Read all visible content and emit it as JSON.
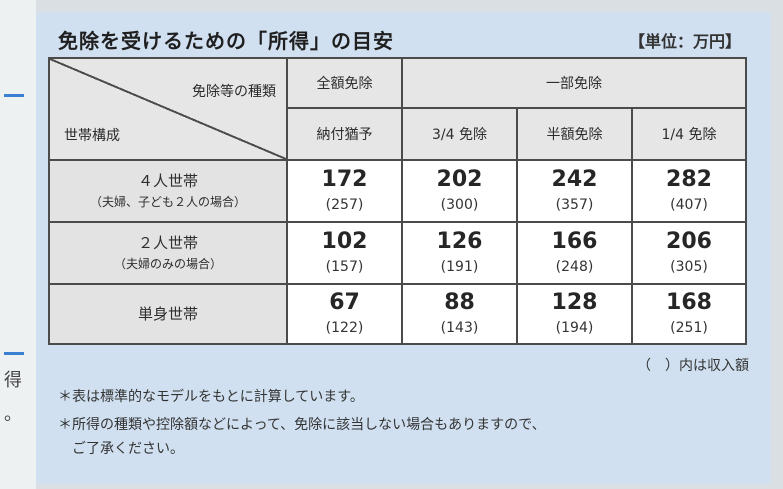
{
  "edge": {
    "char": "得",
    "char2": "。"
  },
  "title": "免除を受けるための「所得」の目安",
  "unit": "【単位：万円】",
  "table": {
    "diag_top": "免除等の種類",
    "diag_bottom": "世帯構成",
    "group_full": "全額免除",
    "group_partial": "一部免除",
    "col_full": "納付猶予",
    "cols": [
      "3/4 免除",
      "半額免除",
      "1/4 免除"
    ],
    "rows": [
      {
        "label": "４人世帯",
        "sublabel": "（夫婦、子ども２人の場合）",
        "values": [
          "172",
          "202",
          "242",
          "282"
        ],
        "incomes": [
          "(257)",
          "(300)",
          "(357)",
          "(407)"
        ]
      },
      {
        "label": "２人世帯",
        "sublabel": "（夫婦のみの場合）",
        "values": [
          "102",
          "126",
          "166",
          "206"
        ],
        "incomes": [
          "(157)",
          "(191)",
          "(248)",
          "(305)"
        ]
      },
      {
        "label": "単身世帯",
        "sublabel": "",
        "values": [
          "67",
          "88",
          "128",
          "168"
        ],
        "incomes": [
          "(122)",
          "(143)",
          "(194)",
          "(251)"
        ]
      }
    ]
  },
  "income_note": "（　）内は収入額",
  "notes": [
    "＊表は標準的なモデルをもとに計算しています。",
    "＊所得の種類や控除額などによって、免除に該当しない場合もありますので、",
    "　ご了承ください。"
  ]
}
